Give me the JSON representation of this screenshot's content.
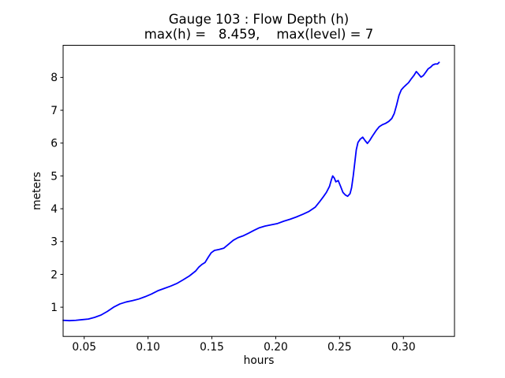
{
  "figure": {
    "background_color": "#ffffff",
    "spine_color": "#000000",
    "text_color": "#000000"
  },
  "chart_data": {
    "type": "line",
    "title": "Gauge 103 : Flow Depth (h)",
    "subtitle": "max(h) =   8.459,    max(level) = 7",
    "max_h": 8.459,
    "max_level": 7,
    "xlabel": "hours",
    "ylabel": "meters",
    "xlim": [
      0.0335,
      0.34
    ],
    "ylim": [
      0.11,
      8.98
    ],
    "grid": false,
    "legend": false,
    "line_color": "#0000ff",
    "xticks": [
      {
        "value": 0.05,
        "label": "0.05"
      },
      {
        "value": 0.1,
        "label": "0.10"
      },
      {
        "value": 0.15,
        "label": "0.15"
      },
      {
        "value": 0.2,
        "label": "0.20"
      },
      {
        "value": 0.25,
        "label": "0.25"
      },
      {
        "value": 0.3,
        "label": "0.30"
      }
    ],
    "yticks": [
      {
        "value": 1,
        "label": "1"
      },
      {
        "value": 2,
        "label": "2"
      },
      {
        "value": 3,
        "label": "3"
      },
      {
        "value": 4,
        "label": "4"
      },
      {
        "value": 5,
        "label": "5"
      },
      {
        "value": 6,
        "label": "6"
      },
      {
        "value": 7,
        "label": "7"
      },
      {
        "value": 8,
        "label": "8"
      }
    ],
    "series": [
      {
        "name": "flow-depth-h",
        "points": [
          [
            0.0335,
            0.6
          ],
          [
            0.0384,
            0.59
          ],
          [
            0.0434,
            0.6
          ],
          [
            0.0483,
            0.62
          ],
          [
            0.0533,
            0.64
          ],
          [
            0.0582,
            0.69
          ],
          [
            0.0631,
            0.76
          ],
          [
            0.0681,
            0.87
          ],
          [
            0.073,
            1.0
          ],
          [
            0.078,
            1.1
          ],
          [
            0.0829,
            1.16
          ],
          [
            0.0878,
            1.2
          ],
          [
            0.0928,
            1.25
          ],
          [
            0.0977,
            1.32
          ],
          [
            0.1026,
            1.4
          ],
          [
            0.1076,
            1.5
          ],
          [
            0.1125,
            1.57
          ],
          [
            0.1175,
            1.64
          ],
          [
            0.1224,
            1.72
          ],
          [
            0.1273,
            1.83
          ],
          [
            0.1323,
            1.95
          ],
          [
            0.1372,
            2.1
          ],
          [
            0.1397,
            2.22
          ],
          [
            0.1421,
            2.3
          ],
          [
            0.1446,
            2.36
          ],
          [
            0.1471,
            2.52
          ],
          [
            0.1495,
            2.66
          ],
          [
            0.152,
            2.73
          ],
          [
            0.1557,
            2.76
          ],
          [
            0.1594,
            2.8
          ],
          [
            0.1631,
            2.92
          ],
          [
            0.1668,
            3.04
          ],
          [
            0.1705,
            3.12
          ],
          [
            0.1742,
            3.17
          ],
          [
            0.1785,
            3.25
          ],
          [
            0.1829,
            3.34
          ],
          [
            0.1872,
            3.42
          ],
          [
            0.1915,
            3.47
          ],
          [
            0.1964,
            3.51
          ],
          [
            0.2014,
            3.55
          ],
          [
            0.2063,
            3.62
          ],
          [
            0.2113,
            3.68
          ],
          [
            0.2162,
            3.75
          ],
          [
            0.2211,
            3.83
          ],
          [
            0.2261,
            3.92
          ],
          [
            0.231,
            4.05
          ],
          [
            0.2341,
            4.2
          ],
          [
            0.2372,
            4.36
          ],
          [
            0.2397,
            4.5
          ],
          [
            0.2421,
            4.68
          ],
          [
            0.2434,
            4.86
          ],
          [
            0.2446,
            5.0
          ],
          [
            0.2458,
            4.94
          ],
          [
            0.2471,
            4.82
          ],
          [
            0.2489,
            4.86
          ],
          [
            0.2508,
            4.68
          ],
          [
            0.2526,
            4.5
          ],
          [
            0.2545,
            4.42
          ],
          [
            0.2563,
            4.38
          ],
          [
            0.2582,
            4.46
          ],
          [
            0.2594,
            4.64
          ],
          [
            0.2607,
            5.0
          ],
          [
            0.2619,
            5.4
          ],
          [
            0.2631,
            5.8
          ],
          [
            0.2644,
            6.02
          ],
          [
            0.2662,
            6.12
          ],
          [
            0.2681,
            6.18
          ],
          [
            0.2699,
            6.08
          ],
          [
            0.2718,
            5.99
          ],
          [
            0.2736,
            6.08
          ],
          [
            0.2755,
            6.2
          ],
          [
            0.2786,
            6.38
          ],
          [
            0.2811,
            6.5
          ],
          [
            0.2835,
            6.56
          ],
          [
            0.286,
            6.6
          ],
          [
            0.2885,
            6.66
          ],
          [
            0.2909,
            6.75
          ],
          [
            0.2928,
            6.9
          ],
          [
            0.2946,
            7.15
          ],
          [
            0.2965,
            7.45
          ],
          [
            0.2983,
            7.62
          ],
          [
            0.3001,
            7.7
          ],
          [
            0.302,
            7.77
          ],
          [
            0.304,
            7.84
          ],
          [
            0.3058,
            7.94
          ],
          [
            0.3082,
            8.06
          ],
          [
            0.3101,
            8.18
          ],
          [
            0.3119,
            8.1
          ],
          [
            0.3138,
            8.01
          ],
          [
            0.3156,
            8.06
          ],
          [
            0.3175,
            8.16
          ],
          [
            0.3193,
            8.26
          ],
          [
            0.3212,
            8.31
          ],
          [
            0.323,
            8.38
          ],
          [
            0.3249,
            8.41
          ],
          [
            0.3267,
            8.41
          ],
          [
            0.328,
            8.46
          ]
        ]
      }
    ]
  }
}
